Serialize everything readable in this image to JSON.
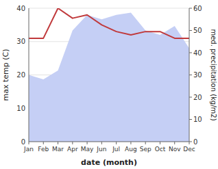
{
  "chart_data": {
    "type": "line",
    "xlabel": "date (month)",
    "ylabel": "max temp (C)",
    "y2label": "med. precipitation (kg/m2)",
    "categories": [
      "Jan",
      "Feb",
      "Mar",
      "Apr",
      "May",
      "Jun",
      "Jul",
      "Aug",
      "Sep",
      "Oct",
      "Nov",
      "Dec"
    ],
    "series": [
      {
        "type": "area",
        "axis": "y2",
        "color": "#c5cff5",
        "values": [
          30,
          28,
          32,
          50,
          57,
          55,
          57,
          58,
          50,
          48,
          52,
          42
        ]
      },
      {
        "type": "line",
        "color": "#c0393b",
        "values": [
          31,
          31,
          40,
          37,
          38,
          35,
          33,
          32,
          33,
          33,
          31,
          31
        ]
      }
    ],
    "ylim": [
      0,
      40
    ],
    "yticks": [
      0,
      10,
      20,
      30,
      40
    ],
    "y2lim": [
      0,
      60
    ],
    "y2ticks": [
      0,
      10,
      20,
      30,
      40,
      50,
      60
    ],
    "grid": true
  }
}
